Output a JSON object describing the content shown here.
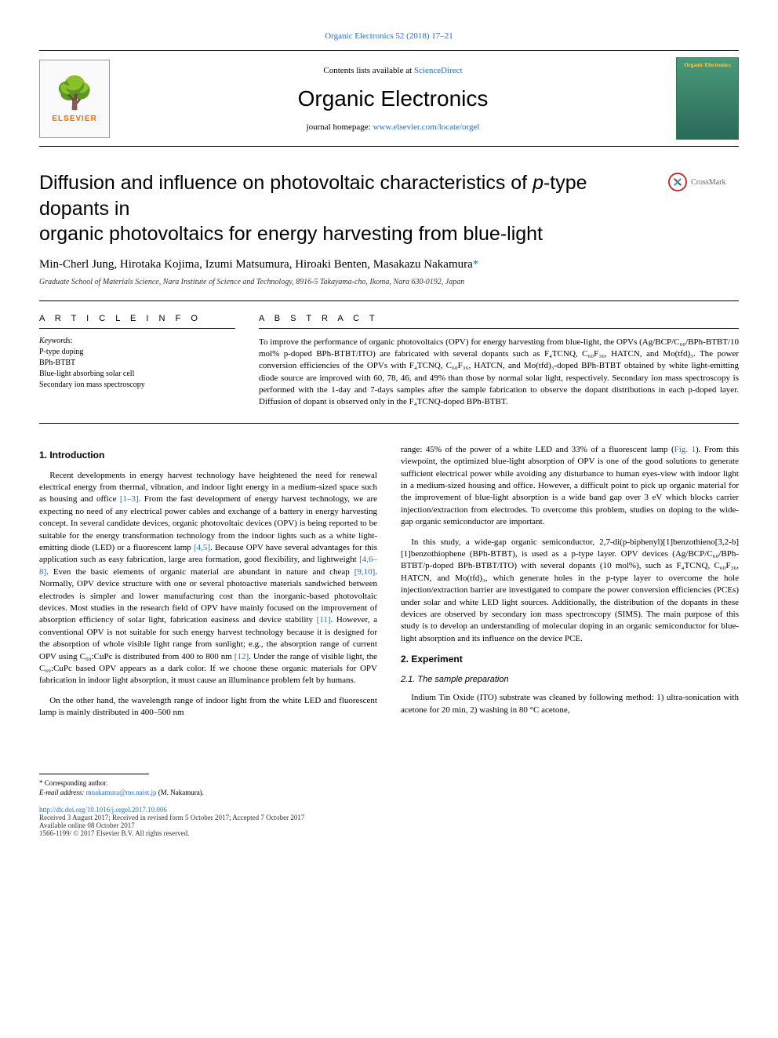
{
  "header": {
    "citation": "Organic Electronics 52 (2018) 17–21",
    "citation_url": "#",
    "contents_prefix": "Contents lists available at ",
    "contents_link": "ScienceDirect",
    "journal_name": "Organic Electronics",
    "homepage_prefix": "journal homepage: ",
    "homepage_link": "www.elsevier.com/locate/orgel",
    "elsevier_brand": "ELSEVIER",
    "cover_title": "Organic Electronics"
  },
  "title": {
    "line1_a": "Diffusion and influence on photovoltaic characteristics of ",
    "line1_ital": "p",
    "line1_b": "-type dopants in",
    "line2": "organic photovoltaics for energy harvesting from blue-light",
    "crossmark": "CrossMark"
  },
  "authors": "Min-Cherl Jung, Hirotaka Kojima, Izumi Matsumura, Hiroaki Benten, Masakazu Nakamura",
  "corr_mark": "*",
  "affiliation": "Graduate School of Materials Science, Nara Institute of Science and Technology, 8916-5 Takayama-cho, Ikoma, Nara 630-0192, Japan",
  "info": {
    "head": "A R T I C L E  I N F O",
    "kw_label": "Keywords:",
    "kw1": "P-type doping",
    "kw2": "BPh-BTBT",
    "kw3": "Blue-light absorbing solar cell",
    "kw4": "Secondary ion mass spectroscopy"
  },
  "abstract": {
    "head": "A B S T R A C T",
    "text": "To improve the performance of organic photovoltaics (OPV) for energy harvesting from blue-light, the OPVs (Ag/BCP/C₆₀/BPh-BTBT/10 mol% p-doped BPh-BTBT/ITO) are fabricated with several dopants such as F₄TCNQ, C₆₀F₃₆, HATCN, and Mo(tfd)₃. The power conversion efficiencies of the OPVs with F₄TCNQ, C₆₀F₃₆, HATCN, and Mo(tfd)₃-doped BPh-BTBT obtained by white light-emitting diode source are improved with 60, 78, 46, and 49% than those by normal solar light, respectively. Secondary ion mass spectroscopy is performed with the 1-day and 7-days samples after the sample fabrication to observe the dopant distributions in each p-doped layer. Diffusion of dopant is observed only in the F₄TCNQ-doped BPh-BTBT."
  },
  "body": {
    "intro_head": "1. Introduction",
    "intro_p1a": "Recent developments in energy harvest technology have heightened the need for renewal electrical energy from thermal, vibration, and indoor light energy in a medium-sized space such as housing and office ",
    "intro_ref1": "[1–3]",
    "intro_p1b": ". From the fast development of energy harvest technology, we are expecting no need of any electrical power cables and exchange of a battery in energy harvesting concept. In several candidate devices, organic photovoltaic devices (OPV) is being reported to be suitable for the energy transformation technology from the indoor lights such as a white light-emitting diode (LED) or a fluorescent lamp ",
    "intro_ref2": "[4,5]",
    "intro_p1c": ". Because OPV have several advantages for this application such as easy fabrication, large area formation, good flexibility, and lightweight ",
    "intro_ref3": "[4,6–8]",
    "intro_p1d": ". Even the basic elements of organic material are abundant in nature and cheap ",
    "intro_ref4": "[9,10]",
    "intro_p1e": ". Normally, OPV device structure with one or several photoactive materials sandwiched between electrodes is simpler and lower manufacturing cost than the inorganic-based photovoltaic devices. Most studies in the research field of OPV have mainly focused on the improvement of absorption efficiency of solar light, fabrication easiness and device stability ",
    "intro_ref5": "[11]",
    "intro_p1f": ". However, a conventional OPV is not suitable for such energy harvest technology because it is designed for the absorption of whole visible light range from sunlight; e.g., the absorption range of current OPV using C₆₀:CuPc is distributed from 400 to 800 nm ",
    "intro_ref6": "[12]",
    "intro_p1g": ". Under the range of visible light, the C₆₀:CuPc based OPV appears as a dark color. If we choose these organic materials for OPV fabrication in indoor light absorption, it must cause an illuminance problem felt by humans.",
    "intro_p2": "On the other hand, the wavelength range of indoor light from the white LED and fluorescent lamp is mainly distributed in 400–500 nm",
    "col2_p1a": "range: 45% of the power of a white LED and 33% of a fluorescent lamp (",
    "col2_ref_fig": "Fig. 1",
    "col2_p1b": "). From this viewpoint, the optimized blue-light absorption of OPV is one of the good solutions to generate sufficient electrical power while avoiding any disturbance to human eyes-view with indoor light in a medium-sized housing and office. However, a difficult point to pick up organic material for the improvement of blue-light absorption is a wide band gap over 3 eV which blocks carrier injection/extraction from electrodes. To overcome this problem, studies on doping to the wide-gap organic semiconductor are important.",
    "col2_p2": "In this study, a wide-gap organic semiconductor, 2,7-di(p-biphenyl)[1]benzothieno[3,2-b][1]benzothiophene (BPh-BTBT), is used as a p-type layer. OPV devices (Ag/BCP/C₆₀/BPh-BTBT/p-doped BPh-BTBT/ITO) with several dopants (10 mol%), such as F₄TCNQ, C₆₀F₃₆, HATCN, and Mo(tfd)₃, which generate holes in the p-type layer to overcome the hole injection/extraction barrier are investigated to compare the power conversion efficiencies (PCEs) under solar and white LED light sources. Additionally, the distribution of the dopants in these devices are observed by secondary ion mass spectroscopy (SIMS). The main purpose of this study is to develop an understanding of molecular doping in an organic semiconductor for blue-light absorption and its influence on the device PCE.",
    "exp_head": "2. Experiment",
    "exp_sub": "2.1. The sample preparation",
    "exp_p1": "Indium Tin Oxide (ITO) substrate was cleaned by following method: 1) ultra-sonication with acetone for 20 min, 2) washing in 80 °C acetone,"
  },
  "footer": {
    "corr_label": "* Corresponding author.",
    "email_label": "E-mail address: ",
    "email": "mnakamura@ms.naist.jp",
    "email_after": " (M. Nakamura).",
    "doi": "http://dx.doi.org/10.1016/j.orgel.2017.10.006",
    "received": "Received 3 August 2017; Received in revised form 5 October 2017; Accepted 7 October 2017",
    "available": "Available online 08 October 2017",
    "copyright": "1566-1199/ © 2017 Elsevier B.V. All rights reserved."
  },
  "colors": {
    "link": "#2a6fb5",
    "elsevier_orange": "#ff6a00",
    "cover_bg_top": "#4a9a7a",
    "cover_bg_bot": "#2a6a5a",
    "cover_text": "#ffc94a"
  },
  "typography": {
    "body_fontsize_pt": 8.5,
    "title_fontsize_pt": 19,
    "journal_name_fontsize_pt": 21,
    "authors_fontsize_pt": 11
  }
}
